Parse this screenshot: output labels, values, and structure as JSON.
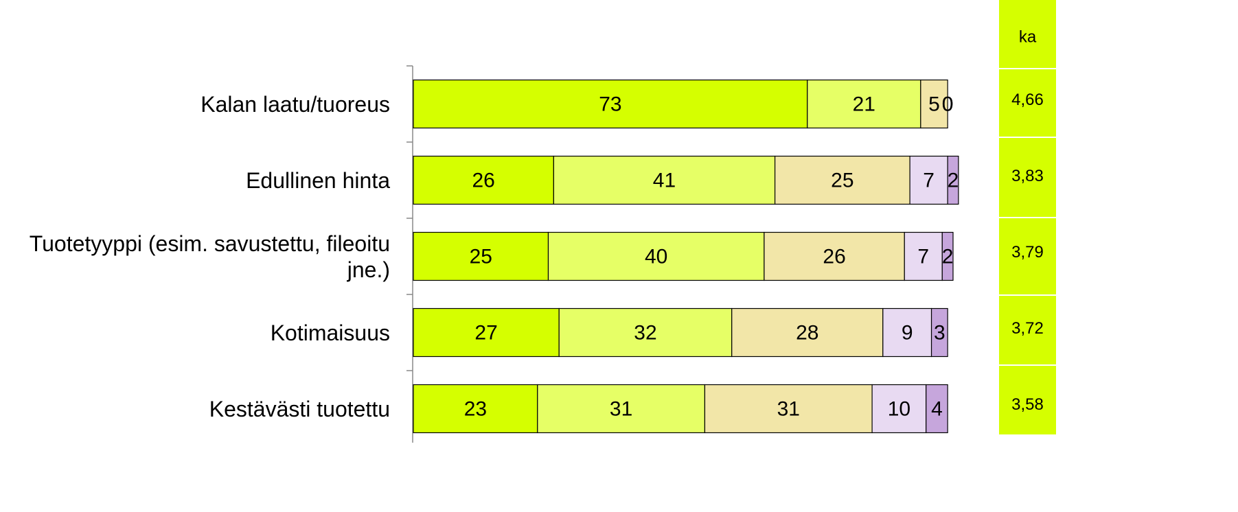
{
  "chart_data": {
    "type": "stacked-bar-horizontal",
    "categories": [
      "Kalan laatu/tuoreus",
      "Edullinen hinta",
      "Tuotetyyppi (esim. savustettu, fileoitu jne.)",
      "Kotimaisuus",
      "Kestävästi tuotettu"
    ],
    "series": [
      {
        "color": "#d5ff00",
        "values": [
          73,
          26,
          25,
          27,
          23
        ]
      },
      {
        "color": "#e6ff66",
        "values": [
          21,
          41,
          40,
          32,
          31
        ]
      },
      {
        "color": "#f2e6a8",
        "values": [
          5,
          25,
          26,
          28,
          31
        ]
      },
      {
        "color": "#e8daf2",
        "values": [
          0,
          7,
          7,
          9,
          10
        ]
      },
      {
        "color": "#c6a6dc",
        "values": [
          0,
          2,
          2,
          3,
          4
        ]
      }
    ],
    "xlim": [
      0,
      100
    ],
    "ka": {
      "label": "ka",
      "color": "#d5ff00",
      "values": [
        4.66,
        3.83,
        3.79,
        3.72,
        3.58
      ],
      "value_labels": [
        "4,66",
        "3,83",
        "3,79",
        "3,72",
        "3,58"
      ]
    }
  }
}
